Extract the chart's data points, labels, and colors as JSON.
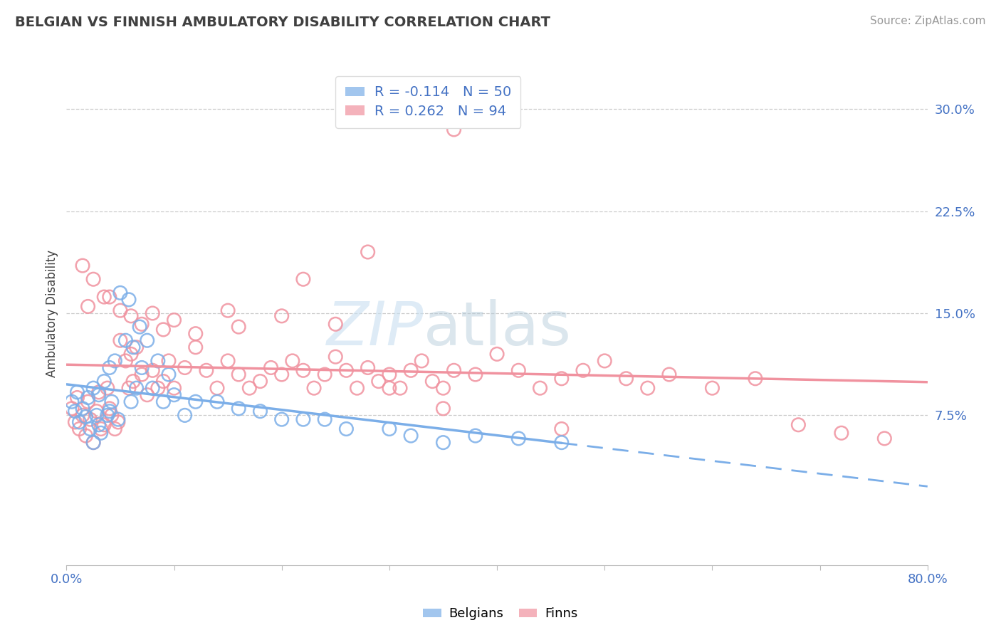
{
  "title": "BELGIAN VS FINNISH AMBULATORY DISABILITY CORRELATION CHART",
  "source_text": "Source: ZipAtlas.com",
  "ylabel": "Ambulatory Disability",
  "xlim": [
    0.0,
    0.8
  ],
  "ylim": [
    -0.035,
    0.335
  ],
  "xticks": [
    0.0,
    0.1,
    0.2,
    0.3,
    0.4,
    0.5,
    0.6,
    0.7,
    0.8
  ],
  "ytick_positions": [
    0.075,
    0.15,
    0.225,
    0.3
  ],
  "yticklabels": [
    "7.5%",
    "15.0%",
    "22.5%",
    "30.0%"
  ],
  "belgian_color": "#7baee8",
  "finn_color": "#f0929f",
  "belgian_R": -0.114,
  "belgian_N": 50,
  "finn_R": 0.262,
  "finn_N": 94,
  "watermark_zip": "ZIP",
  "watermark_atlas": "atlas",
  "title_color": "#404040",
  "axis_label_color": "#404040",
  "tick_color": "#4472c4",
  "grid_color": "#cccccc",
  "legend_text_color": "#4472c4",
  "background_color": "#ffffff",
  "belgian_points_x": [
    0.005,
    0.008,
    0.01,
    0.012,
    0.015,
    0.018,
    0.02,
    0.022,
    0.025,
    0.025,
    0.028,
    0.03,
    0.03,
    0.032,
    0.035,
    0.038,
    0.04,
    0.04,
    0.042,
    0.045,
    0.048,
    0.05,
    0.055,
    0.058,
    0.06,
    0.062,
    0.065,
    0.068,
    0.07,
    0.075,
    0.08,
    0.085,
    0.09,
    0.095,
    0.1,
    0.11,
    0.12,
    0.14,
    0.16,
    0.18,
    0.2,
    0.22,
    0.24,
    0.26,
    0.3,
    0.32,
    0.35,
    0.38,
    0.42,
    0.46
  ],
  "belgian_points_y": [
    0.085,
    0.078,
    0.092,
    0.07,
    0.08,
    0.074,
    0.088,
    0.065,
    0.055,
    0.095,
    0.075,
    0.09,
    0.068,
    0.062,
    0.1,
    0.075,
    0.11,
    0.078,
    0.085,
    0.115,
    0.072,
    0.165,
    0.13,
    0.16,
    0.085,
    0.125,
    0.095,
    0.14,
    0.11,
    0.13,
    0.095,
    0.115,
    0.085,
    0.105,
    0.09,
    0.075,
    0.085,
    0.085,
    0.08,
    0.078,
    0.072,
    0.072,
    0.072,
    0.065,
    0.065,
    0.06,
    0.055,
    0.06,
    0.058,
    0.055
  ],
  "finn_points_x": [
    0.005,
    0.008,
    0.01,
    0.012,
    0.015,
    0.018,
    0.02,
    0.022,
    0.025,
    0.028,
    0.03,
    0.032,
    0.035,
    0.038,
    0.04,
    0.042,
    0.045,
    0.048,
    0.05,
    0.055,
    0.058,
    0.06,
    0.062,
    0.065,
    0.07,
    0.075,
    0.08,
    0.085,
    0.09,
    0.095,
    0.1,
    0.11,
    0.12,
    0.13,
    0.14,
    0.15,
    0.16,
    0.17,
    0.18,
    0.19,
    0.2,
    0.21,
    0.22,
    0.23,
    0.24,
    0.25,
    0.26,
    0.27,
    0.28,
    0.29,
    0.3,
    0.31,
    0.32,
    0.33,
    0.34,
    0.35,
    0.36,
    0.38,
    0.4,
    0.42,
    0.44,
    0.46,
    0.48,
    0.5,
    0.52,
    0.54,
    0.56,
    0.6,
    0.64,
    0.68,
    0.72,
    0.76,
    0.02,
    0.04,
    0.06,
    0.08,
    0.1,
    0.15,
    0.2,
    0.25,
    0.3,
    0.35,
    0.015,
    0.025,
    0.035,
    0.05,
    0.07,
    0.09,
    0.12,
    0.16,
    0.22,
    0.28,
    0.36,
    0.46
  ],
  "finn_points_y": [
    0.08,
    0.07,
    0.088,
    0.065,
    0.075,
    0.06,
    0.085,
    0.072,
    0.055,
    0.078,
    0.092,
    0.065,
    0.068,
    0.095,
    0.08,
    0.075,
    0.065,
    0.07,
    0.13,
    0.115,
    0.095,
    0.12,
    0.1,
    0.125,
    0.105,
    0.09,
    0.108,
    0.095,
    0.1,
    0.115,
    0.095,
    0.11,
    0.125,
    0.108,
    0.095,
    0.115,
    0.105,
    0.095,
    0.1,
    0.11,
    0.105,
    0.115,
    0.108,
    0.095,
    0.105,
    0.118,
    0.108,
    0.095,
    0.11,
    0.1,
    0.105,
    0.095,
    0.108,
    0.115,
    0.1,
    0.095,
    0.108,
    0.105,
    0.12,
    0.108,
    0.095,
    0.102,
    0.108,
    0.115,
    0.102,
    0.095,
    0.105,
    0.095,
    0.102,
    0.068,
    0.062,
    0.058,
    0.155,
    0.162,
    0.148,
    0.15,
    0.145,
    0.152,
    0.148,
    0.142,
    0.095,
    0.08,
    0.185,
    0.175,
    0.162,
    0.152,
    0.142,
    0.138,
    0.135,
    0.14,
    0.175,
    0.195,
    0.285,
    0.065
  ]
}
